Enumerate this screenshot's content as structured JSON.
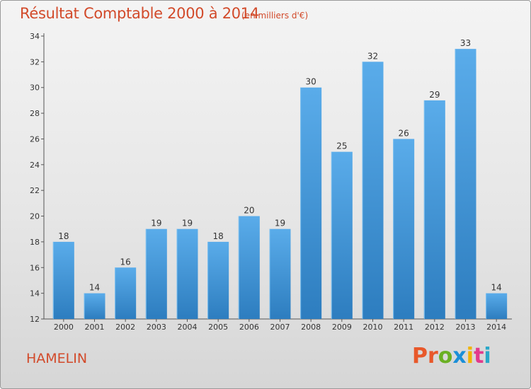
{
  "header": {
    "title": "Résultat Comptable 2000 à 2014",
    "subtitle": "(en milliers d'€)"
  },
  "footer": {
    "commune": "HAMELIN",
    "logo_text": "Proxiti"
  },
  "colors": {
    "title": "#d24a2a",
    "bar_top": "#5aacea",
    "bar_bottom": "#2d7dbf",
    "logo_letters": [
      "#e8582a",
      "#e8582a",
      "#6ab023",
      "#1a8fd8",
      "#f0b400",
      "#e23b8c",
      "#2aa8c8"
    ]
  },
  "chart_data": {
    "type": "bar",
    "title": "Résultat Comptable 2000 à 2014",
    "subtitle": "(en milliers d'€)",
    "categories": [
      "2000",
      "2001",
      "2002",
      "2003",
      "2004",
      "2005",
      "2006",
      "2007",
      "2008",
      "2009",
      "2010",
      "2011",
      "2012",
      "2013",
      "2014"
    ],
    "values": [
      18,
      14,
      16,
      19,
      19,
      18,
      20,
      19,
      30,
      25,
      32,
      26,
      29,
      33,
      14
    ],
    "ylim": [
      12,
      34
    ],
    "yticks": [
      12,
      14,
      16,
      18,
      20,
      22,
      24,
      26,
      28,
      30,
      32,
      34
    ],
    "grid": false,
    "xlabel": "",
    "ylabel": ""
  }
}
